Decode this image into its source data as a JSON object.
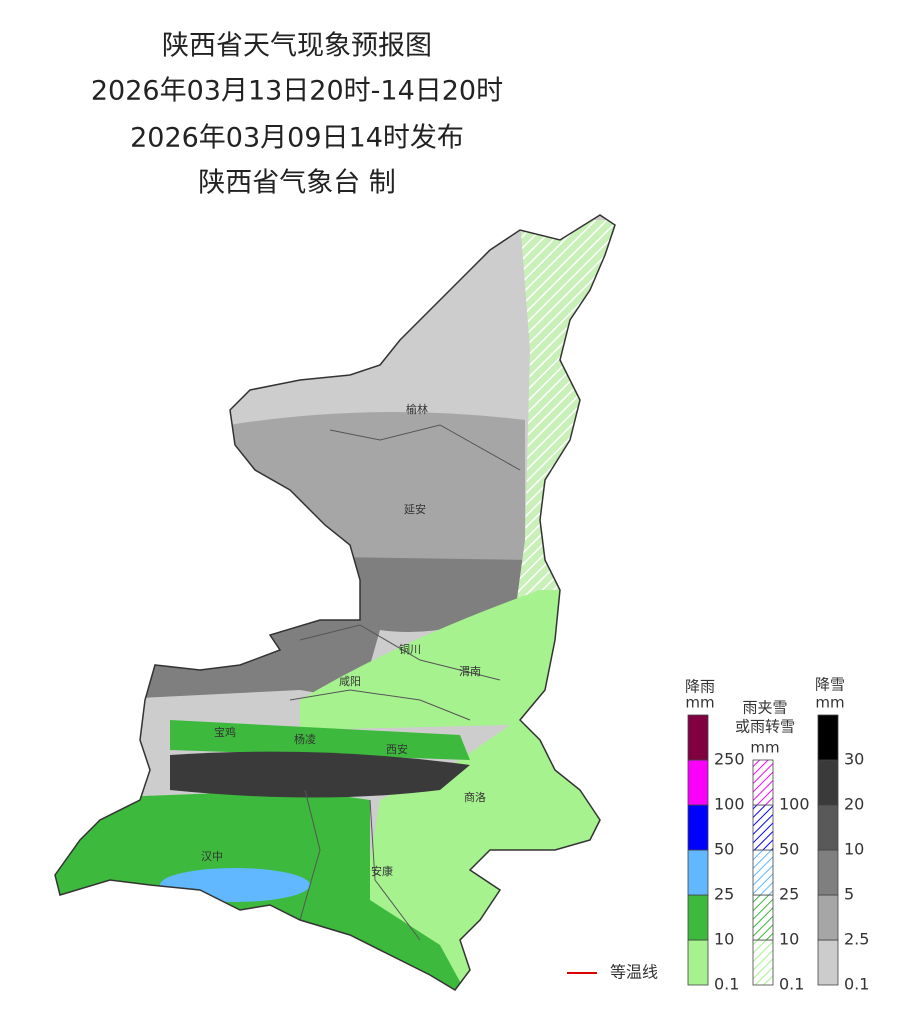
{
  "header": {
    "title": "陕西省天气现象预报图",
    "period": "2026年03月13日20时-14日20时",
    "issued": "2026年03月09日14时发布",
    "producer": "陕西省气象台 制"
  },
  "cities": [
    "榆林",
    "延安",
    "铜川",
    "渭南",
    "咸阳",
    "宝鸡",
    "杨凌",
    "西安",
    "商洛",
    "汉中",
    "安康"
  ],
  "legends": [
    {
      "title": [
        "降雨"
      ],
      "unit": "mm",
      "levels": [
        0.1,
        10,
        25,
        50,
        100,
        250
      ],
      "colors": [
        "#a6f28f",
        "#3dba3d",
        "#61b8ff",
        "#0000fe",
        "#fa00fa",
        "#800040"
      ],
      "hatched": false
    },
    {
      "title": [
        "雨夹雪",
        "或雨转雪"
      ],
      "unit": "mm",
      "levels": [
        0.1,
        10,
        25,
        50,
        100
      ],
      "colors": [
        "#a6f28f",
        "#3dba3d",
        "#61b8ff",
        "#0000fe",
        "#fa00fa"
      ],
      "hatched": true
    },
    {
      "title": [
        "降雪"
      ],
      "unit": "mm",
      "levels": [
        0.1,
        2.5,
        5,
        10,
        20,
        30
      ],
      "colors": [
        "#cccccc",
        "#a6a6a6",
        "#7f7f7f",
        "#595959",
        "#3a3a3a",
        "#000000"
      ],
      "hatched": false
    }
  ],
  "isotherm_label": "等温线"
}
